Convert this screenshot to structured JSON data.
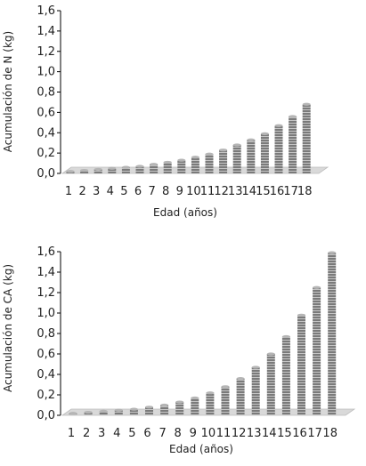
{
  "chart_data": [
    {
      "type": "bar",
      "categories": [
        "1",
        "2",
        "3",
        "4",
        "5",
        "6",
        "7",
        "8",
        "9",
        "10",
        "11",
        "12",
        "13",
        "14",
        "15",
        "16",
        "17",
        "18"
      ],
      "values": [
        0.02,
        0.03,
        0.04,
        0.05,
        0.06,
        0.07,
        0.09,
        0.11,
        0.13,
        0.16,
        0.19,
        0.23,
        0.28,
        0.33,
        0.39,
        0.47,
        0.56,
        0.68
      ],
      "title": "",
      "xlabel": "Edad (años)",
      "ylabel": "Acumulación de N (kg)",
      "ylim": [
        0,
        1.6
      ],
      "yticks": [
        "0,0",
        "0,2",
        "0,4",
        "0,6",
        "0,8",
        "1,0",
        "1,2",
        "1,4",
        "1,6"
      ],
      "grid": false,
      "style": "3d-bars",
      "bar_color": "#8a8a8a",
      "floor_color": "#d9d9d9"
    },
    {
      "type": "bar",
      "categories": [
        "1",
        "2",
        "3",
        "4",
        "5",
        "6",
        "7",
        "8",
        "9",
        "10",
        "11",
        "12",
        "13",
        "14",
        "15",
        "16",
        "17",
        "18"
      ],
      "values": [
        0.02,
        0.03,
        0.04,
        0.05,
        0.06,
        0.08,
        0.1,
        0.13,
        0.17,
        0.22,
        0.28,
        0.36,
        0.47,
        0.6,
        0.77,
        0.98,
        1.25,
        1.59
      ],
      "title": "",
      "xlabel": "Edad (años)",
      "ylabel": "Acumulación de CA (kg)",
      "ylim": [
        0,
        1.6
      ],
      "yticks": [
        "0,0",
        "0,2",
        "0,4",
        "0,6",
        "0,8",
        "1,0",
        "1,2",
        "1,4",
        "1,6"
      ],
      "grid": false,
      "style": "3d-bars",
      "bar_color": "#8a8a8a",
      "floor_color": "#d9d9d9"
    }
  ]
}
